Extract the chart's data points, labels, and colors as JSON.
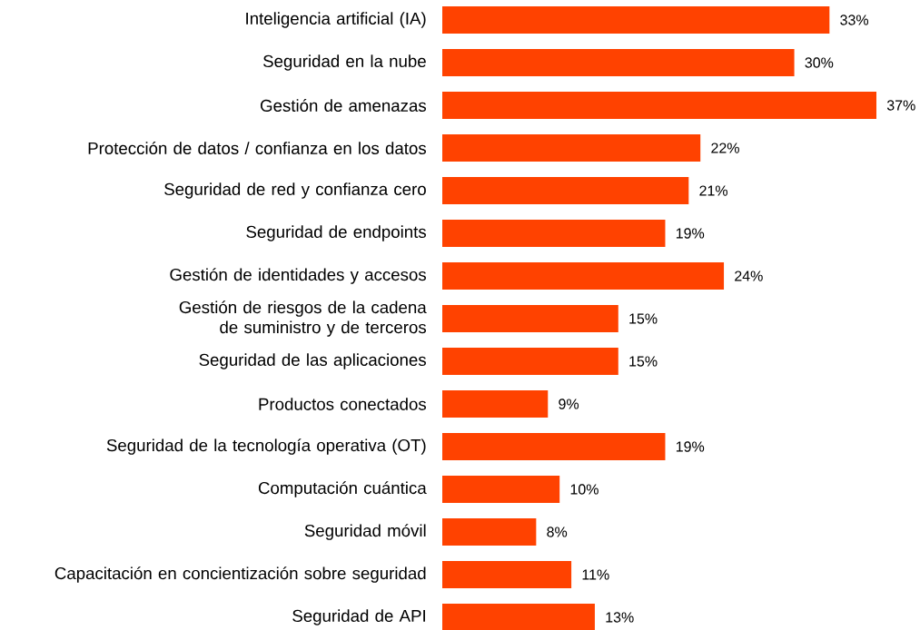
{
  "chart_data": {
    "type": "bar",
    "orientation": "horizontal",
    "color": "#ff4200",
    "categories": [
      "Inteligencia artificial (IA)",
      "Seguridad en la nube",
      "Gestión de amenazas",
      "Protección de datos / confianza en los datos",
      "Seguridad de red y confianza cero",
      "Seguridad de endpoints",
      "Gestión de identidades y accesos",
      "Gestión de riesgos de la cadena de suministro y de terceros",
      "Seguridad de las aplicaciones",
      "Productos conectados",
      "Seguridad de la tecnología operativa (OT)",
      "Computación cuántica",
      "Seguridad móvil",
      "Capacitación en concientización sobre seguridad",
      "Seguridad de API"
    ],
    "values": [
      33,
      30,
      37,
      22,
      21,
      19,
      24,
      15,
      15,
      9,
      19,
      10,
      8,
      11,
      13
    ],
    "value_labels": [
      "33%",
      "30%",
      "37%",
      "22%",
      "21%",
      "19%",
      "24%",
      "15%",
      "15%",
      "9%",
      "19%",
      "10%",
      "8%",
      "11%",
      "13%"
    ]
  }
}
